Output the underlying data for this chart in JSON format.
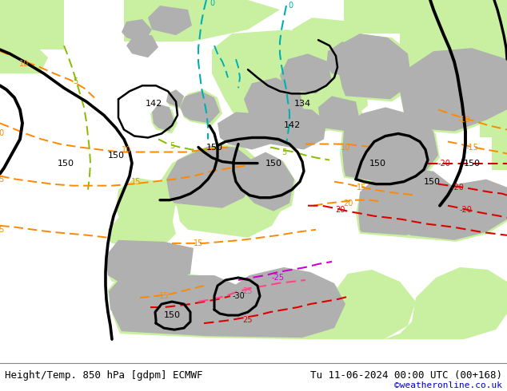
{
  "title_left": "Height/Temp. 850 hPa [gdpm] ECMWF",
  "title_right": "Tu 11-06-2024 00:00 UTC (00+168)",
  "credit": "©weatheronline.co.uk",
  "figsize": [
    6.34,
    4.9
  ],
  "dpi": 100,
  "bg_ocean": "#e8e8e8",
  "bg_land_green": "#c8f0a0",
  "bg_land_gray": "#b0b0b0",
  "title_fontsize": 9,
  "credit_fontsize": 8,
  "credit_color": "#0000cc",
  "colors": {
    "black": "#000000",
    "cyan": "#00b0b0",
    "yellow_green": "#88bb00",
    "orange": "#ff8800",
    "red": "#dd0000",
    "magenta": "#cc00cc",
    "pink": "#ff4488"
  }
}
